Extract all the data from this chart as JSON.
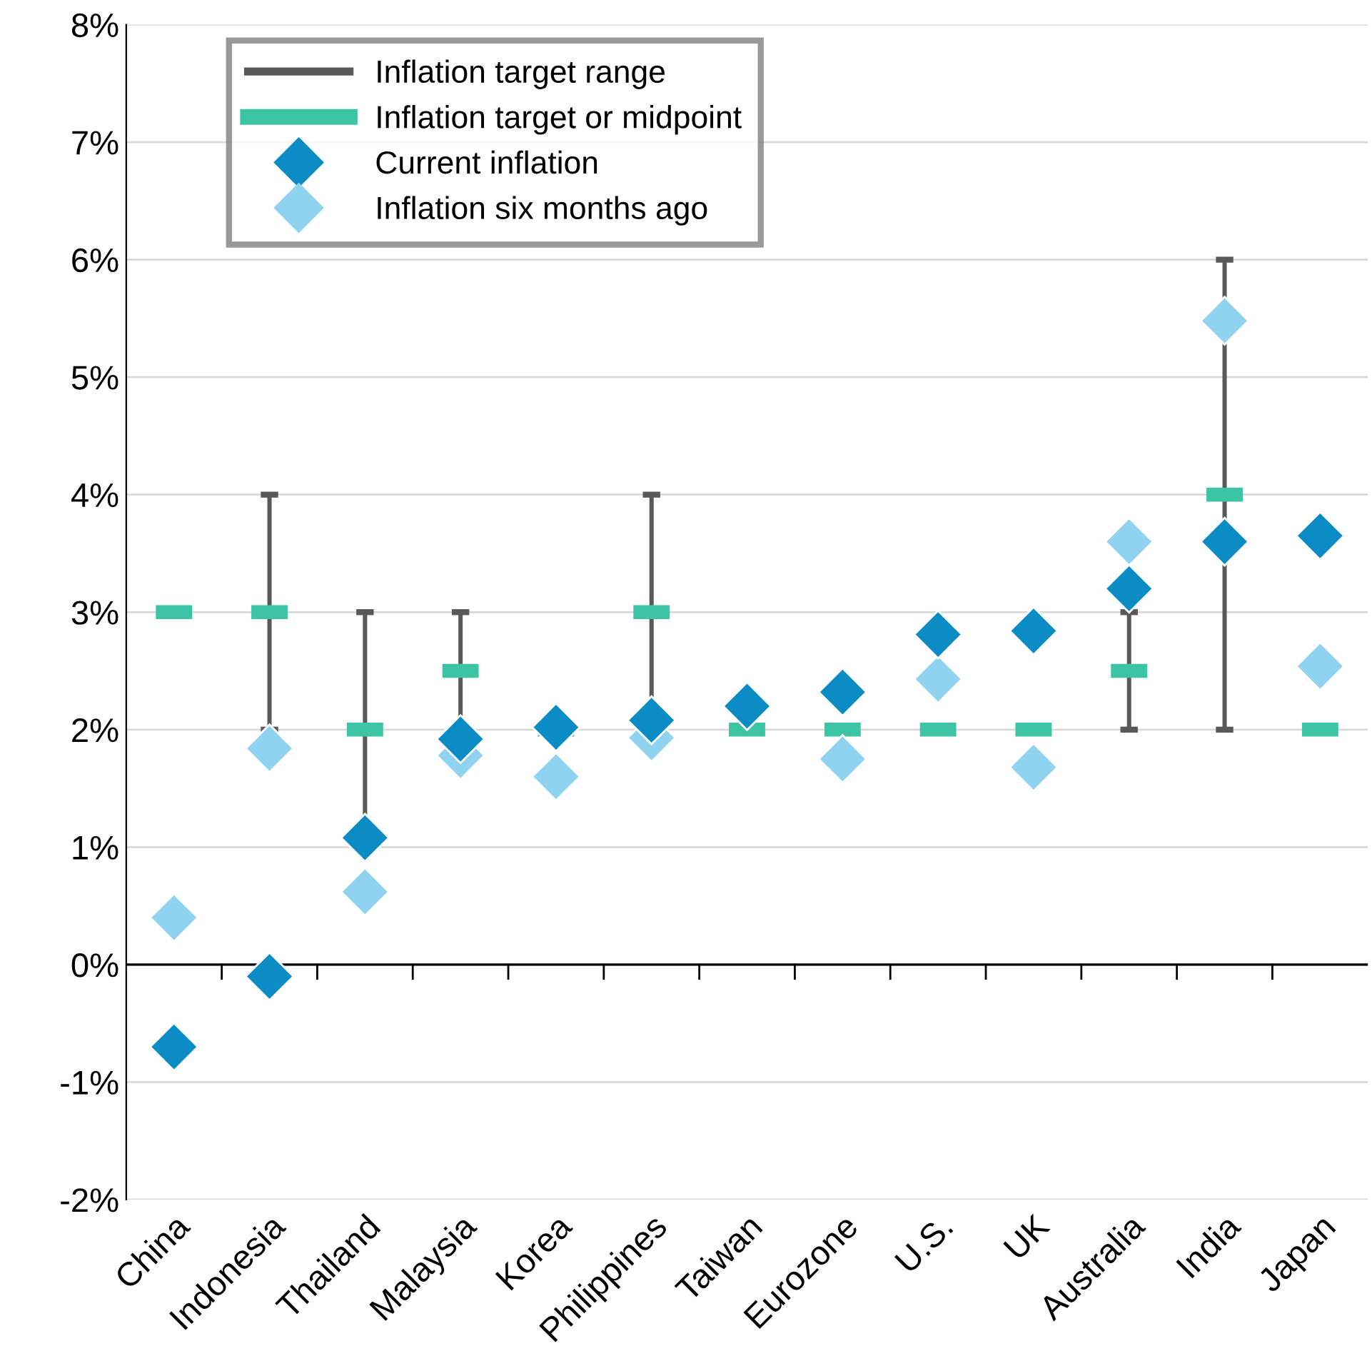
{
  "chart_data": {
    "type": "scatter",
    "categories": [
      "China",
      "Indonesia",
      "Thailand",
      "Malaysia",
      "Korea",
      "Philippines",
      "Taiwan",
      "Eurozone",
      "U.S.",
      "UK",
      "Australia",
      "India",
      "Japan"
    ],
    "series": [
      {
        "name": "Inflation target range",
        "type": "bar",
        "color": "#595959",
        "base": [
          null,
          2,
          1,
          2,
          null,
          2,
          null,
          null,
          null,
          null,
          2,
          2,
          null
        ],
        "values": [
          null,
          2,
          2,
          1,
          null,
          2,
          null,
          null,
          null,
          null,
          1,
          4,
          null
        ]
      },
      {
        "name": "Inflation target or midpoint",
        "type": "bar",
        "color": "#3cc4a4",
        "base": [
          3,
          3,
          2,
          2.5,
          2,
          3,
          2,
          2,
          2,
          2,
          2.5,
          4,
          2
        ],
        "values": [
          0,
          0,
          0,
          0,
          0,
          0,
          0,
          0,
          0,
          0,
          0,
          0,
          0
        ]
      },
      {
        "name": "Current inflation",
        "marker": "diamond",
        "color": "#0c8cc4",
        "values": [
          -0.7,
          -0.1,
          1.08,
          1.92,
          2.02,
          2.08,
          2.2,
          2.32,
          2.81,
          2.84,
          3.2,
          3.6,
          3.65
        ]
      },
      {
        "name": "Inflation six months ago",
        "marker": "diamond",
        "color": "#8fd3f0",
        "values": [
          0.4,
          1.84,
          0.62,
          1.78,
          1.6,
          1.93,
          null,
          1.75,
          2.43,
          1.68,
          3.6,
          5.48,
          2.54
        ]
      }
    ],
    "ylim": [
      -2,
      8
    ],
    "yticks": [
      {
        "value": -2,
        "label": "-2%"
      },
      {
        "value": -1,
        "label": "-1%"
      },
      {
        "value": 0,
        "label": "0%"
      },
      {
        "value": 1,
        "label": "1%"
      },
      {
        "value": 2,
        "label": "2%"
      },
      {
        "value": 3,
        "label": "3%"
      },
      {
        "value": 4,
        "label": "4%"
      },
      {
        "value": 5,
        "label": "5%"
      },
      {
        "value": 6,
        "label": "6%"
      },
      {
        "value": 7,
        "label": "7%"
      },
      {
        "value": 8,
        "label": "8%"
      }
    ],
    "ref_lines": [
      {
        "axis": "y",
        "value": 0,
        "color": "#000000"
      }
    ],
    "grid": "y",
    "legend": "top left"
  }
}
